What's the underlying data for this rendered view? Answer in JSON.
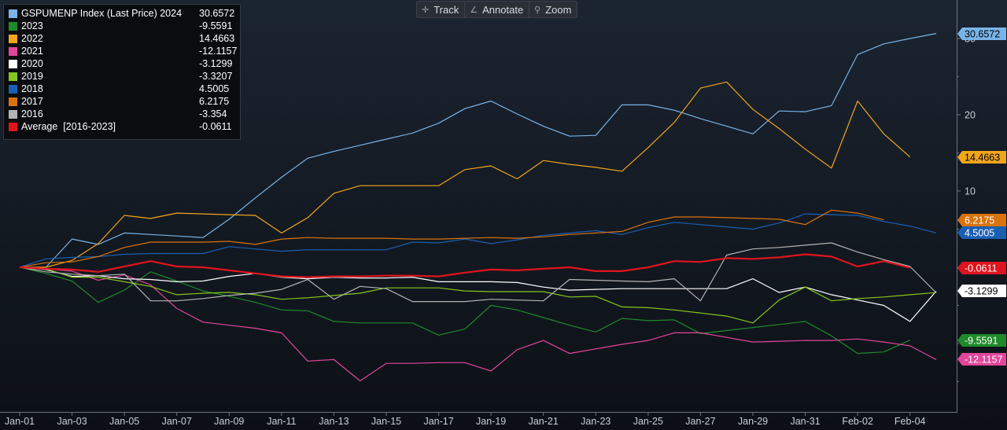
{
  "toolbar": {
    "track_label": "Track",
    "annotate_label": "Annotate",
    "zoom_label": "Zoom",
    "track_icon": "crosshair-icon",
    "annotate_icon": "pencil-icon",
    "zoom_icon": "magnifier-icon"
  },
  "legend": {
    "items": [
      {
        "name": "GSPUMENP Index (Last Price) 2024",
        "value": "30.6572",
        "color": "#79b4e8"
      },
      {
        "name": "2023",
        "value": "-9.5591",
        "color": "#1e8a2a"
      },
      {
        "name": "2022",
        "value": "14.4663",
        "color": "#f0a51c"
      },
      {
        "name": "2021",
        "value": "-12.1157",
        "color": "#e2469c"
      },
      {
        "name": "2020",
        "value": "-3.1299",
        "color": "#ffffff"
      },
      {
        "name": "2019",
        "value": "-3.3207",
        "color": "#86c51d"
      },
      {
        "name": "2018",
        "value": "4.5005",
        "color": "#1a5fb4"
      },
      {
        "name": "2017",
        "value": "6.2175",
        "color": "#d9730d"
      },
      {
        "name": "2016",
        "value": "-3.354",
        "color": "#b4b4b4"
      },
      {
        "name": "Average  [2016-2023]",
        "value": "-0.0611",
        "color": "#e0141e"
      }
    ]
  },
  "chart_data": {
    "type": "line",
    "x": [
      "Jan-01",
      "Jan-02",
      "Jan-03",
      "Jan-04",
      "Jan-05",
      "Jan-06",
      "Jan-07",
      "Jan-08",
      "Jan-09",
      "Jan-10",
      "Jan-11",
      "Jan-12",
      "Jan-13",
      "Jan-14",
      "Jan-15",
      "Jan-16",
      "Jan-17",
      "Jan-18",
      "Jan-19",
      "Jan-20",
      "Jan-21",
      "Jan-22",
      "Jan-23",
      "Jan-24",
      "Jan-25",
      "Jan-26",
      "Jan-27",
      "Jan-28",
      "Jan-29",
      "Jan-30",
      "Jan-31",
      "Feb-01",
      "Feb-02",
      "Feb-03",
      "Feb-04",
      "Feb-05"
    ],
    "xticks": [
      "Jan-01",
      "Jan-03",
      "Jan-05",
      "Jan-07",
      "Jan-09",
      "Jan-11",
      "Jan-13",
      "Jan-15",
      "Jan-17",
      "Jan-19",
      "Jan-21",
      "Jan-23",
      "Jan-25",
      "Jan-27",
      "Jan-29",
      "Jan-31",
      "Feb-02",
      "Feb-04"
    ],
    "yticks": [
      10,
      20,
      30
    ],
    "ylim": [
      -20,
      35
    ],
    "grid": false,
    "legend_position": "top-left",
    "series": [
      {
        "name": "GSPUMENP Index (Last Price) 2024",
        "color": "#79b4e8",
        "end_label": "30.6572",
        "values": [
          0,
          0,
          3.7,
          3,
          4.5,
          4.3,
          4.1,
          3.9,
          6.3,
          9.1,
          11.8,
          14.3,
          15.2,
          16,
          16.8,
          17.6,
          18.9,
          20.8,
          21.8,
          20.1,
          18.5,
          17.2,
          17.3,
          21.3,
          21.3,
          20.6,
          19.5,
          18.5,
          17.5,
          20.5,
          20.4,
          21.2,
          27.9,
          29.3,
          30,
          30.6572
        ]
      },
      {
        "name": "2023",
        "color": "#1e8a2a",
        "end_label": "-9.5591",
        "values": [
          0,
          -0.8,
          -1.8,
          -4.6,
          -3,
          -0.6,
          -1.8,
          -3.1,
          -3.8,
          -4.6,
          -5.6,
          -5.7,
          -7.1,
          -7.3,
          -7.3,
          -7.3,
          -8.9,
          -8.1,
          -5,
          -5.6,
          -6.6,
          -7.6,
          -8.5,
          -6.7,
          -7,
          -6.9,
          -8.7,
          -8.3,
          -7.9,
          -7.5,
          -7.1,
          -9,
          -11.3,
          -11.1,
          -9.5591,
          null
        ]
      },
      {
        "name": "2022",
        "color": "#f0a51c",
        "end_label": "14.4663",
        "values": [
          0,
          0,
          0.9,
          3.1,
          6.8,
          6.4,
          7.1,
          7,
          6.9,
          6.8,
          4.5,
          6.5,
          9.7,
          10.7,
          10.7,
          10.7,
          10.7,
          12.8,
          13.3,
          11.6,
          14,
          13.5,
          13.1,
          12.6,
          15.7,
          19,
          23.5,
          24.3,
          20.7,
          18.2,
          15.5,
          13,
          21.8,
          17.5,
          14.4663,
          null
        ]
      },
      {
        "name": "2021",
        "color": "#e2469c",
        "end_label": "-12.1157",
        "values": [
          0,
          -0.2,
          -0.5,
          -1.7,
          -1,
          -2.3,
          -5.4,
          -7.2,
          -7.6,
          -8,
          -8.6,
          -12.3,
          -12.1,
          -14.9,
          -12.6,
          -12.6,
          -12.5,
          -12.5,
          -13.6,
          -10.8,
          -9.6,
          -11.3,
          -10.7,
          -10.1,
          -9.6,
          -8.6,
          -8.6,
          -9.2,
          -9.8,
          -9.7,
          -9.6,
          -9.6,
          -9.4,
          -9.8,
          -10.3,
          -12.1157
        ]
      },
      {
        "name": "2020",
        "color": "#ffffff",
        "end_label": "-3.1299",
        "values": [
          0,
          -0.3,
          -1.2,
          -1.1,
          -1.5,
          -1.6,
          -1.9,
          -1.8,
          -1.2,
          -0.8,
          -1.3,
          -1.5,
          -1.3,
          -1.4,
          -1.4,
          -1.3,
          -1.9,
          -1.9,
          -1.9,
          -2,
          -2.6,
          -3,
          -2.9,
          -2.8,
          -2.8,
          -2.8,
          -2.8,
          -2.8,
          -1.5,
          -3.3,
          -2.6,
          -3.6,
          -4.3,
          -5,
          -7.1,
          -3.1299
        ]
      },
      {
        "name": "2019",
        "color": "#86c51d",
        "end_label": "-3.3207",
        "values": [
          0,
          -0.2,
          -1.3,
          -1.3,
          -1.9,
          -2.5,
          -3.6,
          -3.4,
          -3.3,
          -3.6,
          -4.2,
          -4,
          -3.7,
          -3.4,
          -2.7,
          -2.7,
          -2.7,
          -3.1,
          -3.2,
          -3.2,
          -3.2,
          -3.9,
          -3.8,
          -5.2,
          -5.3,
          -5.6,
          -6,
          -6.4,
          -7.3,
          -4.3,
          -2.6,
          -4.4,
          -4.1,
          -3.9,
          -3.6,
          -3.3207
        ]
      },
      {
        "name": "2018",
        "color": "#1a5fb4",
        "end_label": "4.5005",
        "values": [
          0,
          1.1,
          1.3,
          1.4,
          1.7,
          1.8,
          1.8,
          1.8,
          2.7,
          2.4,
          2.1,
          2.3,
          2.3,
          2.3,
          2.3,
          3.3,
          3.2,
          3.7,
          3.1,
          3.6,
          4.2,
          4.5,
          4.8,
          4.3,
          5.2,
          5.9,
          5.6,
          5.3,
          5,
          5.8,
          7,
          6.9,
          6.8,
          6,
          5.4,
          4.5005
        ]
      },
      {
        "name": "2017",
        "color": "#d9730d",
        "end_label": "6.2175",
        "values": [
          0,
          0.6,
          0.7,
          1.4,
          2.6,
          3.3,
          3.3,
          3.3,
          3.4,
          3,
          3.7,
          3.9,
          3.8,
          3.8,
          3.8,
          3.7,
          3.7,
          3.8,
          3.9,
          3.8,
          4,
          4.3,
          4.5,
          4.7,
          5.9,
          6.6,
          6.6,
          6.5,
          6.4,
          6.3,
          5.6,
          7.5,
          7.1,
          6.2175,
          null,
          null
        ]
      },
      {
        "name": "2016",
        "color": "#b4b4b4",
        "end_label": "-3.354",
        "values": [
          0,
          -0.6,
          -0.9,
          -1.1,
          -0.9,
          -4.4,
          -4.4,
          -4.1,
          -3.7,
          -3.4,
          -2.9,
          -1.6,
          -4.2,
          -2.5,
          -2.8,
          -4.5,
          -4.5,
          -4.5,
          -4.2,
          -4.3,
          -4.4,
          -1.6,
          -1.7,
          -1.8,
          -1.9,
          -1.5,
          -4.4,
          1.6,
          2.4,
          2.6,
          2.9,
          3.2,
          2,
          1,
          0.1,
          -3.354
        ]
      },
      {
        "name": "Average  [2016-2023]",
        "color": "#e0141e",
        "end_label": "-0.0611",
        "values": [
          0,
          -0.2,
          -0.3,
          -0.6,
          0.1,
          0.8,
          0.1,
          0,
          -0.4,
          -0.8,
          -1.2,
          -1.3,
          -1.2,
          -1.2,
          -1.1,
          -1.1,
          -1.2,
          -0.7,
          -0.3,
          -0.4,
          -0.2,
          0,
          -0.5,
          -0.5,
          0,
          0.8,
          0.7,
          1.2,
          1.1,
          1.3,
          1.7,
          1.4,
          0.1,
          0.8,
          -0.0611,
          null
        ]
      }
    ]
  }
}
